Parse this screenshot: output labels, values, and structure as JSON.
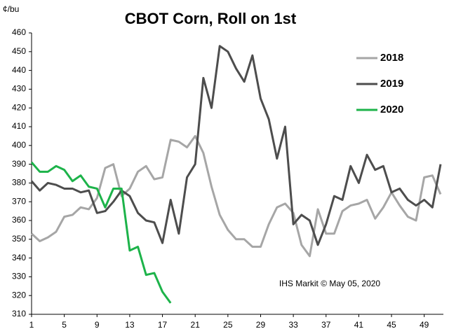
{
  "chart_data": {
    "type": "line",
    "title": "CBOT Corn, Roll on 1st",
    "y_label": "¢/bu",
    "annotation": "IHS Markit © May 05, 2020",
    "x": [
      1,
      2,
      3,
      4,
      5,
      6,
      7,
      8,
      9,
      10,
      11,
      12,
      13,
      14,
      15,
      16,
      17,
      18,
      19,
      20,
      21,
      22,
      23,
      24,
      25,
      26,
      27,
      28,
      29,
      30,
      31,
      32,
      33,
      34,
      35,
      36,
      37,
      38,
      39,
      40,
      41,
      42,
      43,
      44,
      45,
      46,
      47,
      48,
      49,
      50,
      51
    ],
    "xlim": [
      1,
      51
    ],
    "xticks": [
      1,
      5,
      9,
      13,
      17,
      21,
      25,
      29,
      33,
      37,
      41,
      45,
      49
    ],
    "ylim": [
      310,
      460
    ],
    "yticks": [
      310,
      320,
      330,
      340,
      350,
      360,
      370,
      380,
      390,
      400,
      410,
      420,
      430,
      440,
      450,
      460
    ],
    "legend": "upper right",
    "grid": false,
    "series": [
      {
        "name": "2018",
        "color": "#a6a6a6",
        "values": [
          353,
          349,
          351,
          354,
          362,
          363,
          367,
          366,
          372,
          388,
          390,
          373,
          377,
          386,
          389,
          382,
          383,
          403,
          402,
          399,
          405,
          396,
          378,
          363,
          355,
          350,
          350,
          346,
          346,
          358,
          367,
          369,
          364,
          347,
          341,
          366,
          353,
          353,
          365,
          368,
          369,
          371,
          361,
          367,
          375,
          368,
          362,
          360,
          383,
          384,
          374
        ]
      },
      {
        "name": "2019",
        "color": "#4d4d4d",
        "values": [
          381,
          376,
          380,
          379,
          377,
          377,
          375,
          376,
          364,
          365,
          370,
          376,
          373,
          364,
          360,
          359,
          348,
          371,
          353,
          383,
          390,
          436,
          420,
          453,
          450,
          441,
          434,
          448,
          425,
          414,
          393,
          410,
          358,
          363,
          360,
          347,
          358,
          373,
          371,
          389,
          380,
          395,
          387,
          389,
          375,
          377,
          371,
          368,
          371,
          367,
          390
        ]
      },
      {
        "name": "2020",
        "color": "#1db34a",
        "values": [
          391,
          386,
          386,
          389,
          387,
          381,
          384,
          378,
          377,
          367,
          377,
          377,
          344,
          346,
          331,
          332,
          322,
          316,
          null,
          null,
          null,
          null,
          null,
          null,
          null,
          null,
          null,
          null,
          null,
          null,
          null,
          null,
          null,
          null,
          null,
          null,
          null,
          null,
          null,
          null,
          null,
          null,
          null,
          null,
          null,
          null,
          null,
          null,
          null,
          null,
          null
        ]
      }
    ]
  }
}
